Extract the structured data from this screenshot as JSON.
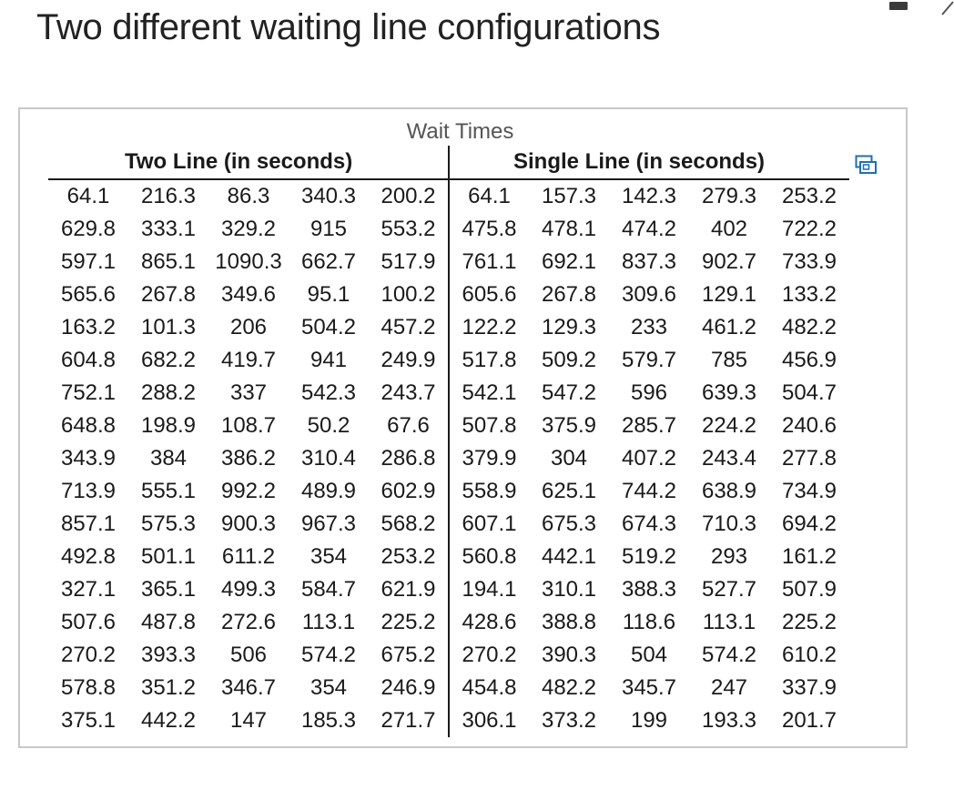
{
  "page": {
    "title": "Two different waiting line configurations"
  },
  "table": {
    "caption": "Wait Times",
    "headers": [
      "Two Line (in seconds)",
      "Single Line (in seconds)"
    ],
    "rows": [
      [
        "64.1",
        "216.3",
        "86.3",
        "340.3",
        "200.2",
        "64.1",
        "157.3",
        "142.3",
        "279.3",
        "253.2"
      ],
      [
        "629.8",
        "333.1",
        "329.2",
        "915",
        "553.2",
        "475.8",
        "478.1",
        "474.2",
        "402",
        "722.2"
      ],
      [
        "597.1",
        "865.1",
        "1090.3",
        "662.7",
        "517.9",
        "761.1",
        "692.1",
        "837.3",
        "902.7",
        "733.9"
      ],
      [
        "565.6",
        "267.8",
        "349.6",
        "95.1",
        "100.2",
        "605.6",
        "267.8",
        "309.6",
        "129.1",
        "133.2"
      ],
      [
        "163.2",
        "101.3",
        "206",
        "504.2",
        "457.2",
        "122.2",
        "129.3",
        "233",
        "461.2",
        "482.2"
      ],
      [
        "604.8",
        "682.2",
        "419.7",
        "941",
        "249.9",
        "517.8",
        "509.2",
        "579.7",
        "785",
        "456.9"
      ],
      [
        "752.1",
        "288.2",
        "337",
        "542.3",
        "243.7",
        "542.1",
        "547.2",
        "596",
        "639.3",
        "504.7"
      ],
      [
        "648.8",
        "198.9",
        "108.7",
        "50.2",
        "67.6",
        "507.8",
        "375.9",
        "285.7",
        "224.2",
        "240.6"
      ],
      [
        "343.9",
        "384",
        "386.2",
        "310.4",
        "286.8",
        "379.9",
        "304",
        "407.2",
        "243.4",
        "277.8"
      ],
      [
        "713.9",
        "555.1",
        "992.2",
        "489.9",
        "602.9",
        "558.9",
        "625.1",
        "744.2",
        "638.9",
        "734.9"
      ],
      [
        "857.1",
        "575.3",
        "900.3",
        "967.3",
        "568.2",
        "607.1",
        "675.3",
        "674.3",
        "710.3",
        "694.2"
      ],
      [
        "492.8",
        "501.1",
        "611.2",
        "354",
        "253.2",
        "560.8",
        "442.1",
        "519.2",
        "293",
        "161.2"
      ],
      [
        "327.1",
        "365.1",
        "499.3",
        "584.7",
        "621.9",
        "194.1",
        "310.1",
        "388.3",
        "527.7",
        "507.9"
      ],
      [
        "507.6",
        "487.8",
        "272.6",
        "113.1",
        "225.2",
        "428.6",
        "388.8",
        "118.6",
        "113.1",
        "225.2"
      ],
      [
        "270.2",
        "393.3",
        "506",
        "574.2",
        "675.2",
        "270.2",
        "390.3",
        "504",
        "574.2",
        "610.2"
      ],
      [
        "578.8",
        "351.2",
        "346.7",
        "354",
        "246.9",
        "454.8",
        "482.2",
        "345.7",
        "247",
        "337.9"
      ],
      [
        "375.1",
        "442.2",
        "147",
        "185.3",
        "271.7",
        "306.1",
        "373.2",
        "199",
        "193.3",
        "201.7"
      ]
    ]
  },
  "icons": {
    "copy": "copy-table-icon",
    "top_dash": "minimize-icon",
    "top_chevron": "chevron-icon"
  },
  "colors": {
    "text": "#1a1a1a",
    "panel_border": "#c8c8c8",
    "caption": "#555555",
    "icon_blue": "#1f6fb2"
  }
}
